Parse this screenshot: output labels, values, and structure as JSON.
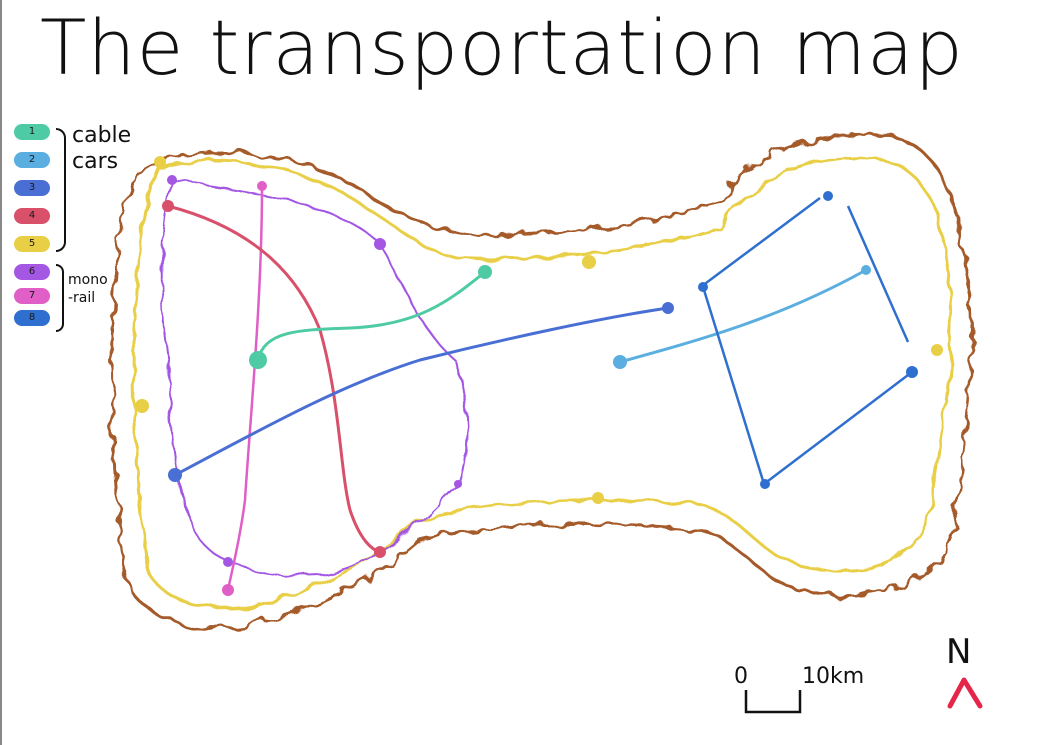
{
  "title": "The transportation map",
  "legend": {
    "items": [
      {
        "num": "1",
        "color": "#4ecba4"
      },
      {
        "num": "2",
        "color": "#5aaee0"
      },
      {
        "num": "3",
        "color": "#4a6fd4"
      },
      {
        "num": "4",
        "color": "#d8506a"
      },
      {
        "num": "5",
        "color": "#e8cf46"
      },
      {
        "num": "6",
        "color": "#a357e3"
      },
      {
        "num": "7",
        "color": "#e05fc7"
      },
      {
        "num": "8",
        "color": "#2f6fcf"
      }
    ],
    "groups": [
      {
        "label_line1": "cable",
        "label_line2": "cars"
      },
      {
        "label_line1": "mono",
        "label_line2": "-rail"
      }
    ]
  },
  "scale": {
    "start": "0",
    "end": "10km"
  },
  "north": "N",
  "colors": {
    "outer_border": "#a55a2a",
    "inner_border": "#e8cf46",
    "north_arrow": "#e5264a",
    "ink": "#111111"
  }
}
